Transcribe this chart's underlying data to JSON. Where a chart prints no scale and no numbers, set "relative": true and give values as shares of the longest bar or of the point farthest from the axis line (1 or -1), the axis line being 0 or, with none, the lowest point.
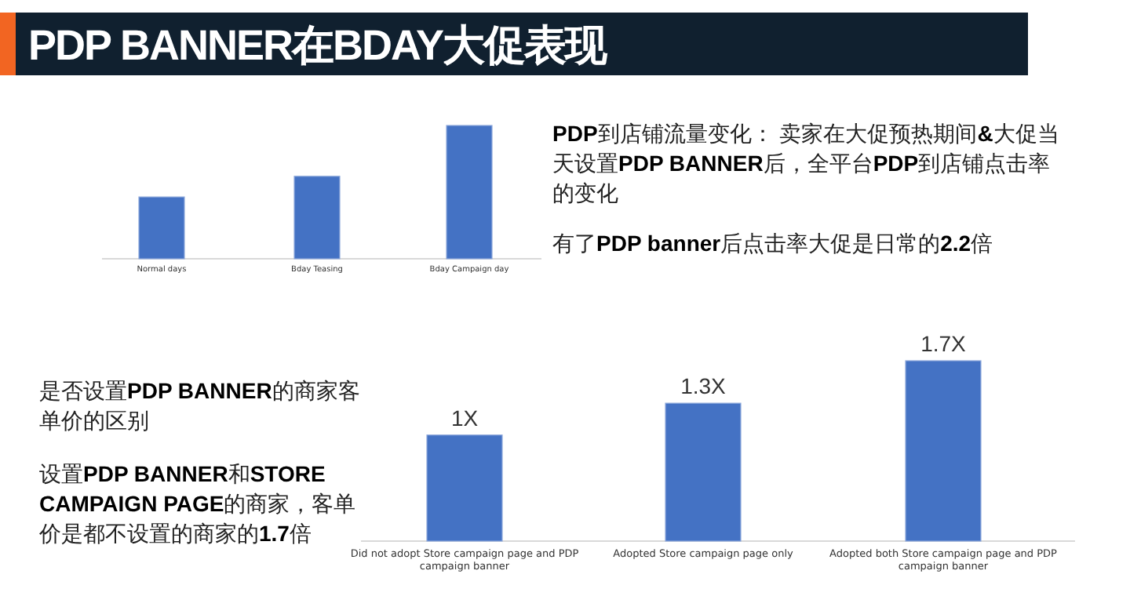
{
  "chart_data": [
    {
      "type": "bar",
      "title": "PDP BANNER在BDAY大促表现",
      "categories": [
        "Normal days",
        "Bday Teasing",
        "Bday Campaign day"
      ],
      "values": [
        0.464,
        0.619,
        1
      ],
      "relative": true,
      "color": "#4472c4",
      "annotations": [
        "**PDP**到店铺流量变化： 卖家在大促预热期间**&**大促当天设置**PDP BANNER**后，全平台**PDP**到店铺点击率的变化",
        "有了**PDP banner**后点击率大促是日常的**2.2**倍"
      ]
    },
    {
      "type": "bar",
      "categories": [
        "Did not adopt Store campaign page and PDP campaign banner",
        "Adopted Store campaign page only",
        "Adopted both Store campaign page and PDP campaign banner"
      ],
      "values": [
        1,
        1.3,
        1.7
      ],
      "value_labels": [
        "1X",
        "1.3X",
        "1.7X"
      ],
      "color": "#4472c4",
      "annotations": [
        "是否设置**PDP BANNER**的商家客单价的区别",
        "设置**PDP BANNER**和**STORE CAMPAIGN PAGE**的商家，客单价是都不设置的商家的**1.7**倍"
      ]
    }
  ]
}
